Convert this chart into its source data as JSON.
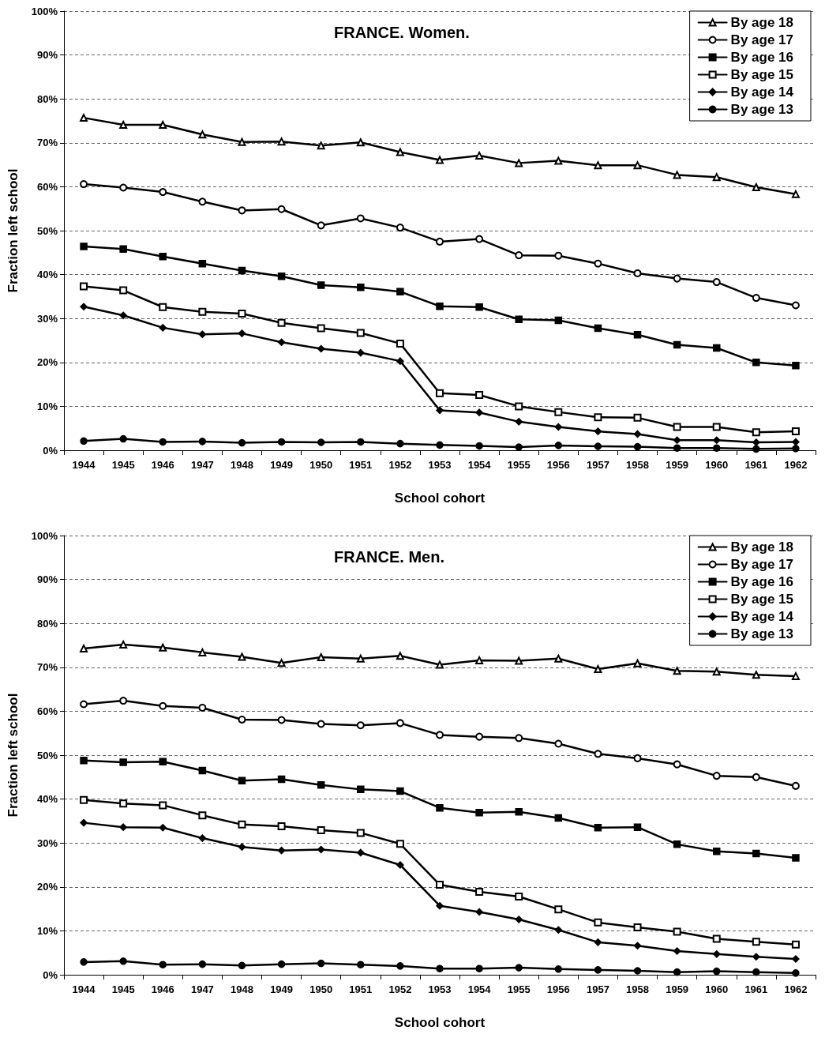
{
  "chart_data": [
    {
      "type": "line",
      "title": "FRANCE. Women.",
      "xlabel": "School cohort",
      "ylabel": "Fraction left school",
      "categories": [
        "1944",
        "1945",
        "1946",
        "1947",
        "1948",
        "1949",
        "1950",
        "1951",
        "1952",
        "1953",
        "1954",
        "1955",
        "1956",
        "1957",
        "1958",
        "1959",
        "1960",
        "1961",
        "1962"
      ],
      "series": [
        {
          "name": "By age 18",
          "color": "#000000",
          "marker": "triangle",
          "values": [
            75.7,
            74.1,
            74.1,
            71.9,
            70.2,
            70.3,
            69.4,
            70.1,
            67.9,
            66.1,
            67.1,
            65.4,
            65.9,
            64.9,
            64.9,
            62.7,
            62.2,
            59.9,
            58.3
          ]
        },
        {
          "name": "By age 17",
          "color": "#000000",
          "marker": "circle",
          "values": [
            60.6,
            59.8,
            58.8,
            56.6,
            54.6,
            54.9,
            51.2,
            52.8,
            50.7,
            47.5,
            48.1,
            44.4,
            44.3,
            42.5,
            40.3,
            39.1,
            38.3,
            34.7,
            33.0
          ]
        },
        {
          "name": "By age 16",
          "color": "#000000",
          "marker": "square",
          "values": [
            46.4,
            45.8,
            44.1,
            42.5,
            40.9,
            39.6,
            37.6,
            37.1,
            36.1,
            32.8,
            32.6,
            29.8,
            29.6,
            27.8,
            26.3,
            24.0,
            23.3,
            20.0,
            19.3
          ]
        },
        {
          "name": "By age 15",
          "color": "#000000",
          "marker": "square",
          "values": [
            37.3,
            36.4,
            32.6,
            31.5,
            31.1,
            29.0,
            27.8,
            26.7,
            24.3,
            13.0,
            12.6,
            10.0,
            8.7,
            7.5,
            7.4,
            5.3,
            5.3,
            4.1,
            4.3
          ]
        },
        {
          "name": "By age 14",
          "color": "#000000",
          "marker": "diamond",
          "values": [
            32.7,
            30.7,
            27.9,
            26.4,
            26.6,
            24.6,
            23.1,
            22.2,
            20.3,
            9.1,
            8.6,
            6.5,
            5.3,
            4.3,
            3.7,
            2.3,
            2.3,
            1.8,
            1.9
          ]
        },
        {
          "name": "By age 13",
          "color": "#000000",
          "marker": "circle",
          "values": [
            2.1,
            2.6,
            1.9,
            2.0,
            1.7,
            1.9,
            1.8,
            1.9,
            1.5,
            1.2,
            1.0,
            0.7,
            1.1,
            0.9,
            0.8,
            0.5,
            0.5,
            0.3,
            0.4
          ]
        }
      ],
      "ylim": [
        0,
        100
      ],
      "yticks": [
        {
          "value": 0,
          "label": "0%"
        },
        {
          "value": 10,
          "label": "10%"
        },
        {
          "value": 20,
          "label": "20%"
        },
        {
          "value": 30,
          "label": "30%"
        },
        {
          "value": 40,
          "label": "40%"
        },
        {
          "value": 50,
          "label": "50%"
        },
        {
          "value": 60,
          "label": "60%"
        },
        {
          "value": 70,
          "label": "70%"
        },
        {
          "value": 80,
          "label": "80%"
        },
        {
          "value": 90,
          "label": "90%"
        },
        {
          "value": 100,
          "label": "100%"
        }
      ],
      "grid": "y",
      "legend": "top right",
      "line_style": "solid"
    },
    {
      "type": "line",
      "title": "FRANCE. Men.",
      "xlabel": "School cohort",
      "ylabel": "Fraction left school",
      "categories": [
        "1944",
        "1945",
        "1946",
        "1947",
        "1948",
        "1949",
        "1950",
        "1951",
        "1952",
        "1953",
        "1954",
        "1955",
        "1956",
        "1957",
        "1958",
        "1959",
        "1960",
        "1961",
        "1962"
      ],
      "series": [
        {
          "name": "By age 18",
          "color": "#000000",
          "marker": "triangle",
          "values": [
            74.3,
            75.2,
            74.5,
            73.4,
            72.4,
            71.0,
            72.3,
            72.0,
            72.6,
            70.6,
            71.6,
            71.5,
            72.0,
            69.6,
            70.9,
            69.2,
            69.0,
            68.3,
            68.0
          ]
        },
        {
          "name": "By age 17",
          "color": "#000000",
          "marker": "circle",
          "values": [
            61.6,
            62.4,
            61.2,
            60.8,
            58.1,
            58.0,
            57.1,
            56.8,
            57.3,
            54.6,
            54.2,
            53.9,
            52.6,
            50.3,
            49.3,
            47.9,
            45.3,
            45.0,
            43.0
          ]
        },
        {
          "name": "By age 16",
          "color": "#000000",
          "marker": "square",
          "values": [
            48.8,
            48.4,
            48.5,
            46.5,
            44.2,
            44.5,
            43.2,
            42.2,
            41.8,
            38.0,
            36.9,
            37.1,
            35.7,
            33.5,
            33.6,
            29.7,
            28.1,
            27.6,
            26.6
          ]
        },
        {
          "name": "By age 15",
          "color": "#000000",
          "marker": "square",
          "values": [
            39.8,
            39.0,
            38.6,
            36.3,
            34.2,
            33.8,
            32.9,
            32.3,
            29.8,
            20.5,
            18.9,
            17.8,
            14.9,
            11.9,
            10.8,
            9.8,
            8.2,
            7.5,
            6.9
          ]
        },
        {
          "name": "By age 14",
          "color": "#000000",
          "marker": "diamond",
          "values": [
            34.6,
            33.6,
            33.5,
            31.1,
            29.1,
            28.3,
            28.5,
            27.8,
            25.0,
            15.7,
            14.3,
            12.6,
            10.2,
            7.4,
            6.6,
            5.4,
            4.7,
            4.1,
            3.6
          ]
        },
        {
          "name": "By age 13",
          "color": "#000000",
          "marker": "circle",
          "values": [
            2.9,
            3.1,
            2.3,
            2.4,
            2.1,
            2.4,
            2.6,
            2.3,
            2.0,
            1.4,
            1.4,
            1.6,
            1.3,
            1.1,
            0.9,
            0.6,
            0.8,
            0.6,
            0.4
          ]
        }
      ],
      "ylim": [
        0,
        100
      ],
      "yticks": [
        {
          "value": 0,
          "label": "0%"
        },
        {
          "value": 10,
          "label": "10%"
        },
        {
          "value": 20,
          "label": "20%"
        },
        {
          "value": 30,
          "label": "30%"
        },
        {
          "value": 40,
          "label": "40%"
        },
        {
          "value": 50,
          "label": "50%"
        },
        {
          "value": 60,
          "label": "60%"
        },
        {
          "value": 70,
          "label": "70%"
        },
        {
          "value": 80,
          "label": "80%"
        },
        {
          "value": 90,
          "label": "90%"
        },
        {
          "value": 100,
          "label": "100%"
        }
      ],
      "grid": "y",
      "legend": "top right",
      "line_style": "solid"
    }
  ]
}
